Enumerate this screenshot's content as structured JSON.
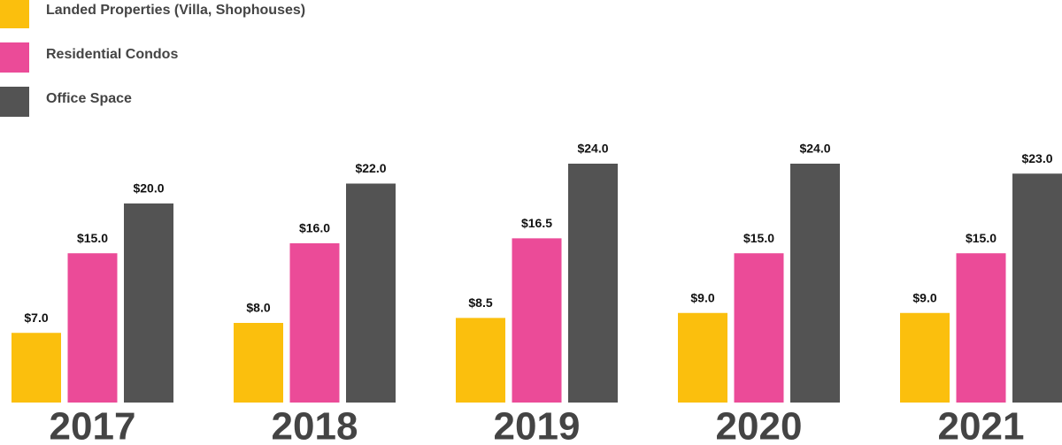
{
  "chart_data": {
    "type": "bar",
    "categories": [
      "2017",
      "2018",
      "2019",
      "2020",
      "2021"
    ],
    "series": [
      {
        "name": "Landed Properties (Villa, Shophouses)",
        "color": "#fbbf0d",
        "values": [
          7,
          8,
          8.5,
          9,
          9
        ],
        "value_labels": [
          "$7.0",
          "$8.0",
          "$8.5",
          "$9.0",
          "$9.0"
        ]
      },
      {
        "name": "Residential Condos",
        "color": "#eb4b98",
        "values": [
          15,
          16,
          16.5,
          15,
          15
        ],
        "value_labels": [
          "$15.0",
          "$16.0",
          "$16.5",
          "$15.0",
          "$15.0"
        ]
      },
      {
        "name": "Office Space",
        "color": "#535353",
        "values": [
          20,
          22,
          24,
          24,
          23
        ],
        "value_labels": [
          "$20.0",
          "$22.0",
          "$24.0",
          "$24.0",
          "$23.0"
        ]
      }
    ],
    "legend": "top-left"
  }
}
